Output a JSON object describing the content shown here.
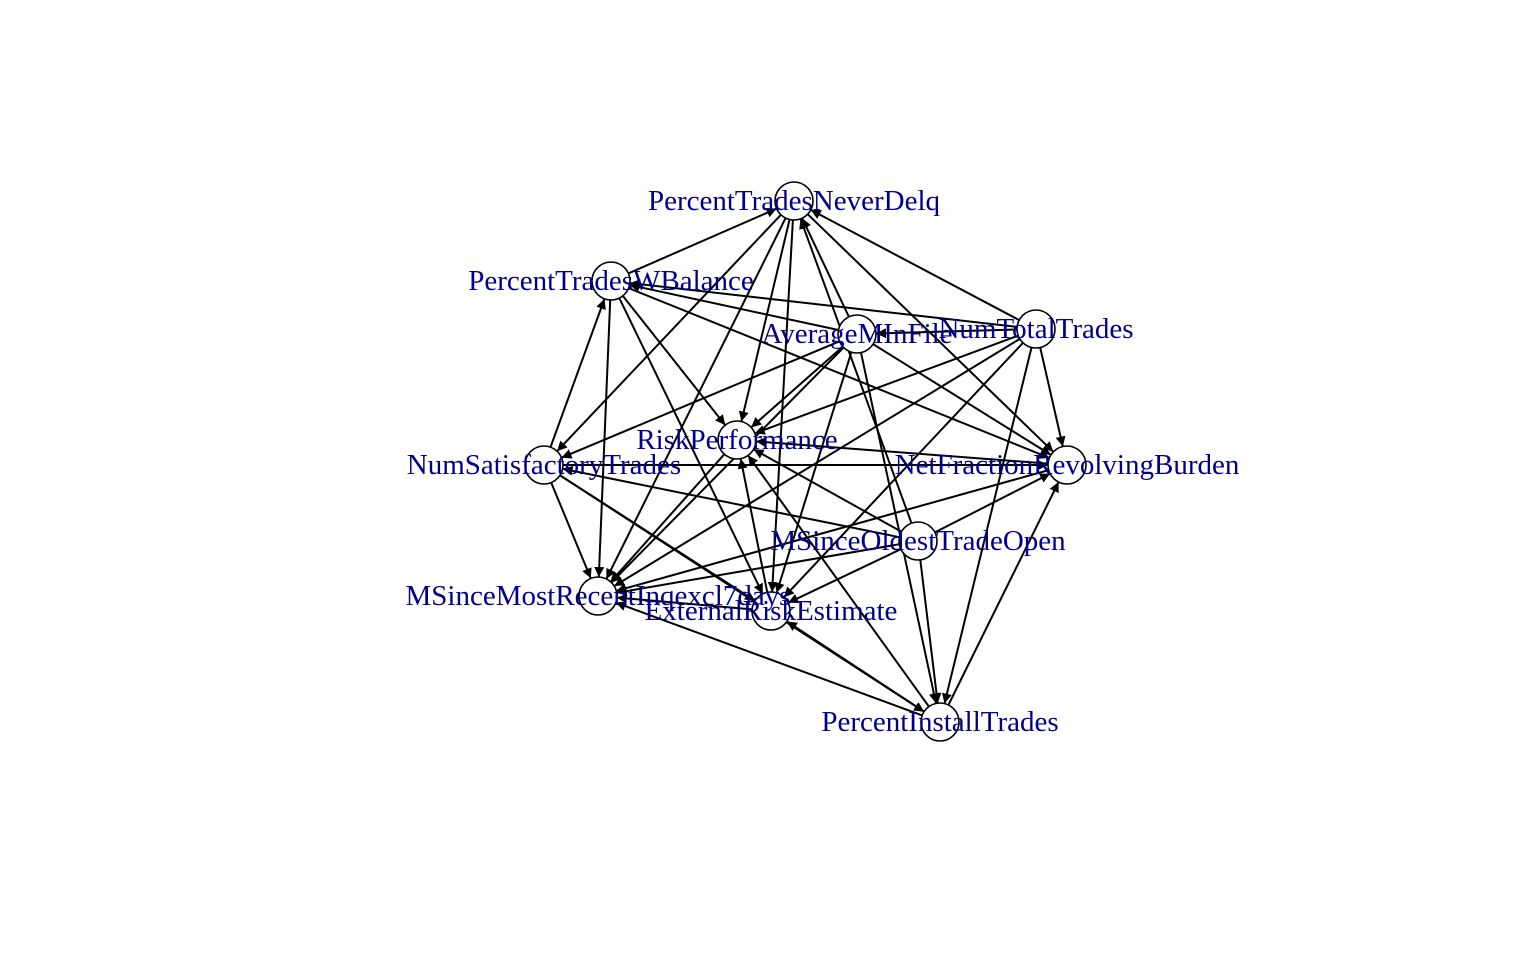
{
  "graph": {
    "directed": true,
    "colors": {
      "label": "#00008b",
      "edge": "#000000",
      "node_fill": "#ffffff",
      "node_stroke": "#000000"
    },
    "nodes": [
      {
        "id": "PercentTradesNeverDelq",
        "label": "PercentTradesNeverDelq"
      },
      {
        "id": "PercentTradesWBalance",
        "label": "PercentTradesWBalance"
      },
      {
        "id": "AverageMInFile",
        "label": "AverageMInFile"
      },
      {
        "id": "NumTotalTrades",
        "label": "NumTotalTrades"
      },
      {
        "id": "RiskPerformance",
        "label": "RiskPerformance"
      },
      {
        "id": "NumSatisfactoryTrades",
        "label": "NumSatisfactoryTrades"
      },
      {
        "id": "NetFractionRevolvingBurden",
        "label": "NetFractionRevolvingBurden"
      },
      {
        "id": "MSinceOldestTradeOpen",
        "label": "MSinceOldestTradeOpen"
      },
      {
        "id": "MSinceMostRecentInqexcl7days",
        "label": "MSinceMostRecentInqexcl7days"
      },
      {
        "id": "ExternalRiskEstimate",
        "label": "ExternalRiskEstimate"
      },
      {
        "id": "PercentInstallTrades",
        "label": "PercentInstallTrades"
      }
    ],
    "edges": [
      {
        "from": "PercentTradesNeverDelq",
        "to": "RiskPerformance"
      },
      {
        "from": "PercentTradesNeverDelq",
        "to": "MSinceMostRecentInqexcl7days"
      },
      {
        "from": "PercentTradesNeverDelq",
        "to": "ExternalRiskEstimate"
      },
      {
        "from": "PercentTradesNeverDelq",
        "to": "NetFractionRevolvingBurden"
      },
      {
        "from": "PercentTradesNeverDelq",
        "to": "NumSatisfactoryTrades"
      },
      {
        "from": "PercentTradesWBalance",
        "to": "PercentTradesNeverDelq"
      },
      {
        "from": "PercentTradesWBalance",
        "to": "RiskPerformance"
      },
      {
        "from": "PercentTradesWBalance",
        "to": "MSinceMostRecentInqexcl7days"
      },
      {
        "from": "PercentTradesWBalance",
        "to": "ExternalRiskEstimate"
      },
      {
        "from": "PercentTradesWBalance",
        "to": "NetFractionRevolvingBurden"
      },
      {
        "from": "AverageMInFile",
        "to": "PercentTradesNeverDelq"
      },
      {
        "from": "AverageMInFile",
        "to": "PercentTradesWBalance"
      },
      {
        "from": "AverageMInFile",
        "to": "RiskPerformance"
      },
      {
        "from": "AverageMInFile",
        "to": "NumSatisfactoryTrades"
      },
      {
        "from": "AverageMInFile",
        "to": "MSinceMostRecentInqexcl7days"
      },
      {
        "from": "AverageMInFile",
        "to": "ExternalRiskEstimate"
      },
      {
        "from": "AverageMInFile",
        "to": "PercentInstallTrades"
      },
      {
        "from": "AverageMInFile",
        "to": "NetFractionRevolvingBurden"
      },
      {
        "from": "NumTotalTrades",
        "to": "PercentTradesNeverDelq"
      },
      {
        "from": "NumTotalTrades",
        "to": "PercentTradesWBalance"
      },
      {
        "from": "NumTotalTrades",
        "to": "AverageMInFile"
      },
      {
        "from": "NumTotalTrades",
        "to": "RiskPerformance"
      },
      {
        "from": "NumTotalTrades",
        "to": "NetFractionRevolvingBurden"
      },
      {
        "from": "NumTotalTrades",
        "to": "MSinceMostRecentInqexcl7days"
      },
      {
        "from": "NumTotalTrades",
        "to": "ExternalRiskEstimate"
      },
      {
        "from": "NumTotalTrades",
        "to": "PercentInstallTrades"
      },
      {
        "from": "NumSatisfactoryTrades",
        "to": "PercentTradesWBalance"
      },
      {
        "from": "NumSatisfactoryTrades",
        "to": "MSinceMostRecentInqexcl7days"
      },
      {
        "from": "NumSatisfactoryTrades",
        "to": "ExternalRiskEstimate"
      },
      {
        "from": "NumSatisfactoryTrades",
        "to": "PercentInstallTrades"
      },
      {
        "from": "NumSatisfactoryTrades",
        "to": "NetFractionRevolvingBurden"
      },
      {
        "from": "NetFractionRevolvingBurden",
        "to": "RiskPerformance"
      },
      {
        "from": "NetFractionRevolvingBurden",
        "to": "MSinceMostRecentInqexcl7days"
      },
      {
        "from": "MSinceOldestTradeOpen",
        "to": "PercentTradesNeverDelq"
      },
      {
        "from": "MSinceOldestTradeOpen",
        "to": "RiskPerformance"
      },
      {
        "from": "MSinceOldestTradeOpen",
        "to": "NumSatisfactoryTrades"
      },
      {
        "from": "MSinceOldestTradeOpen",
        "to": "NetFractionRevolvingBurden"
      },
      {
        "from": "MSinceOldestTradeOpen",
        "to": "MSinceMostRecentInqexcl7days"
      },
      {
        "from": "MSinceOldestTradeOpen",
        "to": "ExternalRiskEstimate"
      },
      {
        "from": "MSinceOldestTradeOpen",
        "to": "PercentInstallTrades"
      },
      {
        "from": "ExternalRiskEstimate",
        "to": "RiskPerformance"
      },
      {
        "from": "ExternalRiskEstimate",
        "to": "MSinceMostRecentInqexcl7days"
      },
      {
        "from": "RiskPerformance",
        "to": "MSinceMostRecentInqexcl7days"
      },
      {
        "from": "PercentInstallTrades",
        "to": "ExternalRiskEstimate"
      },
      {
        "from": "PercentInstallTrades",
        "to": "NetFractionRevolvingBurden"
      },
      {
        "from": "PercentInstallTrades",
        "to": "RiskPerformance"
      },
      {
        "from": "PercentInstallTrades",
        "to": "MSinceMostRecentInqexcl7days"
      }
    ]
  }
}
